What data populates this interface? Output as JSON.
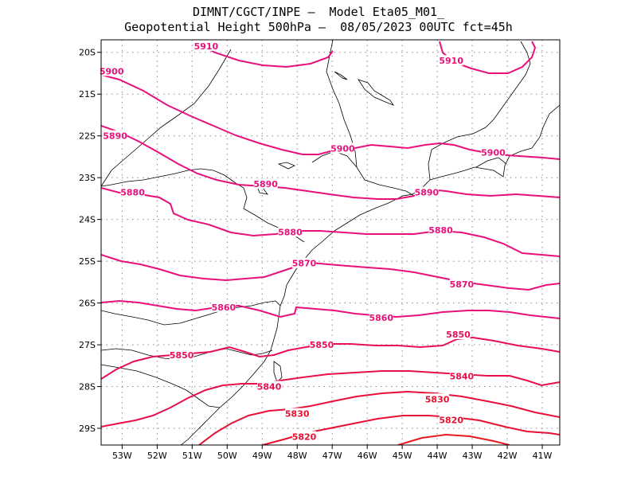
{
  "title": {
    "line1": "DIMNT/CGCT/INPE –  Model Eta05_M01_",
    "line2": "Geopotential Height 500hPa –  08/05/2023 00UTC fct=45h"
  },
  "map": {
    "lon_range": [
      -53.6,
      -40.5
    ],
    "lat_range": [
      -29.4,
      -19.7
    ],
    "lon_ticks": [
      {
        "value": -53,
        "label": "53W"
      },
      {
        "value": -52,
        "label": "52W"
      },
      {
        "value": -51,
        "label": "51W"
      },
      {
        "value": -50,
        "label": "50W"
      },
      {
        "value": -49,
        "label": "49W"
      },
      {
        "value": -48,
        "label": "48W"
      },
      {
        "value": -47,
        "label": "47W"
      },
      {
        "value": -46,
        "label": "46W"
      },
      {
        "value": -45,
        "label": "45W"
      },
      {
        "value": -44,
        "label": "44W"
      },
      {
        "value": -43,
        "label": "43W"
      },
      {
        "value": -42,
        "label": "42W"
      },
      {
        "value": -41,
        "label": "41W"
      }
    ],
    "lat_ticks": [
      {
        "value": -20,
        "label": "20S"
      },
      {
        "value": -21,
        "label": "21S"
      },
      {
        "value": -22,
        "label": "22S"
      },
      {
        "value": -23,
        "label": "23S"
      },
      {
        "value": -24,
        "label": "24S"
      },
      {
        "value": -25,
        "label": "25S"
      },
      {
        "value": -26,
        "label": "26S"
      },
      {
        "value": -27,
        "label": "27S"
      },
      {
        "value": -28,
        "label": "28S"
      },
      {
        "value": -29,
        "label": "29S"
      }
    ],
    "gridlines": "dotted",
    "contour_labels": [
      {
        "text": "5910",
        "lon": -50.6,
        "lat": -19.85
      },
      {
        "text": "5910",
        "lon": -43.6,
        "lat": -20.2
      },
      {
        "text": "5900",
        "lon": -53.3,
        "lat": -20.45
      },
      {
        "text": "5900",
        "lon": -46.7,
        "lat": -22.3
      },
      {
        "text": "5900",
        "lon": -42.4,
        "lat": -22.4
      },
      {
        "text": "5890",
        "lon": -53.2,
        "lat": -22.0
      },
      {
        "text": "5890",
        "lon": -48.9,
        "lat": -23.15
      },
      {
        "text": "5890",
        "lon": -44.3,
        "lat": -23.35
      },
      {
        "text": "5880",
        "lon": -52.7,
        "lat": -23.35
      },
      {
        "text": "5880",
        "lon": -48.2,
        "lat": -24.3
      },
      {
        "text": "5880",
        "lon": -43.9,
        "lat": -24.25
      },
      {
        "text": "5870",
        "lon": -47.8,
        "lat": -25.05
      },
      {
        "text": "5870",
        "lon": -43.3,
        "lat": -25.55
      },
      {
        "text": "5860",
        "lon": -50.1,
        "lat": -26.1
      },
      {
        "text": "5860",
        "lon": -45.6,
        "lat": -26.35
      },
      {
        "text": "5850",
        "lon": -51.3,
        "lat": -27.25
      },
      {
        "text": "5850",
        "lon": -47.3,
        "lat": -27.0
      },
      {
        "text": "5850",
        "lon": -43.4,
        "lat": -26.75
      },
      {
        "text": "5840",
        "lon": -48.8,
        "lat": -28.0
      },
      {
        "text": "5840",
        "lon": -43.3,
        "lat": -27.75
      },
      {
        "text": "5830",
        "lon": -48.0,
        "lat": -28.65
      },
      {
        "text": "5830",
        "lon": -44.0,
        "lat": -28.3
      },
      {
        "text": "5820",
        "lon": -47.8,
        "lat": -29.2
      },
      {
        "text": "5820",
        "lon": -43.6,
        "lat": -28.8
      }
    ]
  }
}
